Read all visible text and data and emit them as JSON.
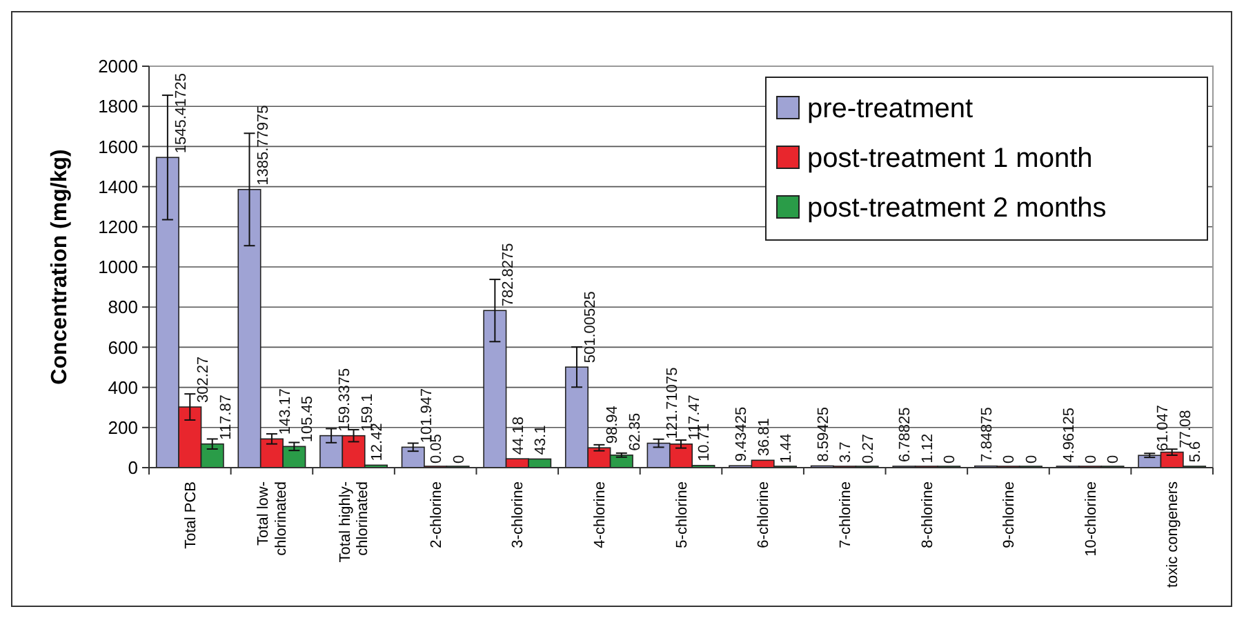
{
  "chart_data": {
    "type": "bar",
    "ylabel": "Concentration (mg/kg)",
    "categories": [
      "Total PCB",
      "Total low-chlorinated",
      "Total highly-chlorinated",
      "2-chlorine",
      "3-chlorine",
      "4-chlorine",
      "5-chlorine",
      "6-chlorine",
      "7-chlorine",
      "8-chlorine",
      "9-chlorine",
      "10-chlorine",
      "toxic congeners"
    ],
    "series": [
      {
        "name": "pre-treatment",
        "color": "#9fa3d4",
        "values": [
          1545.41725,
          1385.77975,
          159.3375,
          101.947,
          782.8275,
          501.00525,
          121.71075,
          9.43425,
          8.59425,
          6.78825,
          7.84875,
          4.96125,
          61.047
        ],
        "errors": [
          310,
          280,
          35,
          20,
          155,
          100,
          20,
          null,
          null,
          null,
          null,
          null,
          10
        ]
      },
      {
        "name": "post-treatment 1 month",
        "color": "#e8262d",
        "values": [
          302.27,
          143.17,
          159.1,
          0.05,
          44.18,
          98.94,
          117.47,
          36.81,
          3.7,
          1.12,
          0,
          0,
          77.08
        ],
        "errors": [
          65,
          25,
          30,
          null,
          null,
          15,
          20,
          null,
          null,
          null,
          null,
          null,
          15
        ]
      },
      {
        "name": "post-treatment 2 months",
        "color": "#2a9c48",
        "values": [
          117.87,
          105.45,
          12.42,
          0,
          43.1,
          62.35,
          10.71,
          1.44,
          0.27,
          0,
          0,
          0,
          5.6
        ],
        "errors": [
          25,
          20,
          null,
          null,
          null,
          10,
          null,
          null,
          null,
          null,
          null,
          null,
          null
        ]
      }
    ],
    "ylim": [
      0,
      2000
    ],
    "yticks": [
      0,
      200,
      400,
      600,
      800,
      1000,
      1200,
      1400,
      1600,
      1800,
      2000
    ],
    "grid": "y",
    "legend": "top right",
    "data_labels": true
  }
}
